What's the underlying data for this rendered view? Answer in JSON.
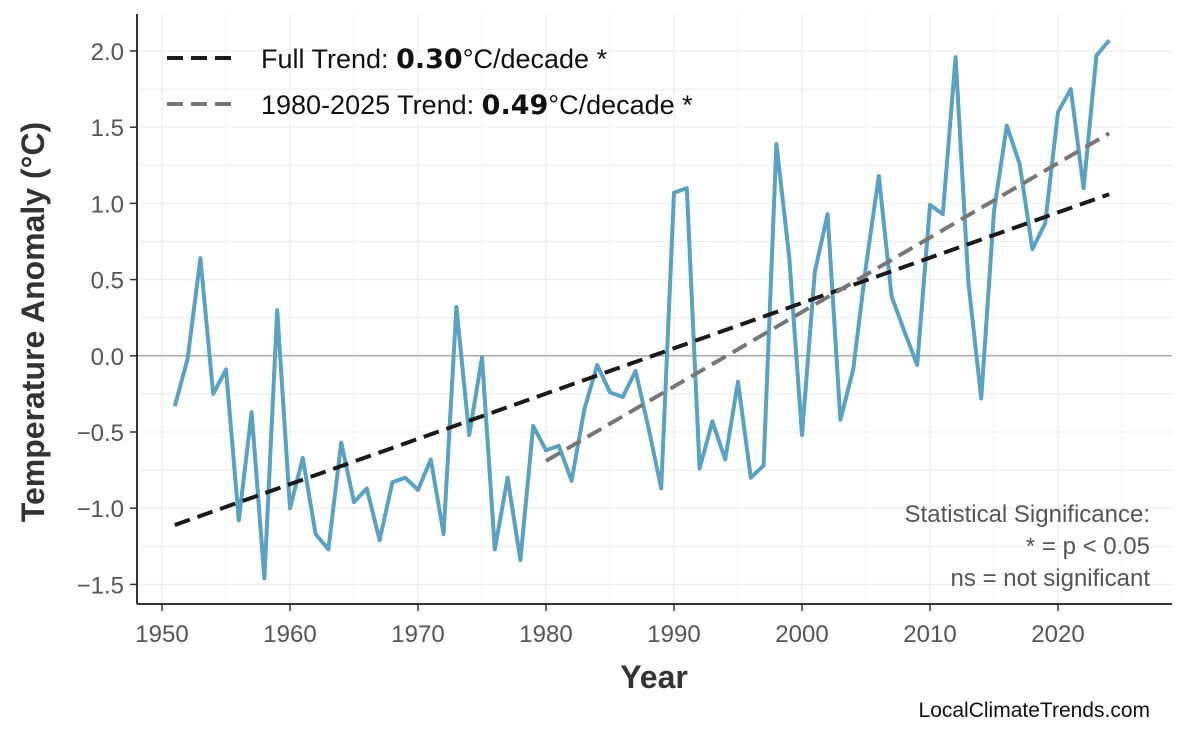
{
  "chart_data": {
    "type": "line",
    "xlabel": "Year",
    "ylabel": "Temperature Anomaly (°C)",
    "xlim": [
      1947,
      2029
    ],
    "ylim": [
      -1.65,
      2.2
    ],
    "x_ticks": [
      1950,
      1960,
      1970,
      1980,
      1990,
      2000,
      2010,
      2020
    ],
    "y_ticks": [
      2.0,
      1.5,
      1.0,
      0.5,
      0.0,
      -0.5,
      -1.0,
      -1.5
    ],
    "y_tick_labels": [
      "2.0",
      "1.5",
      "1.0",
      "0.5",
      "0.0",
      "−0.5",
      "−1.0",
      "−1.5"
    ],
    "grid": true,
    "zero_line": true,
    "legend_position": "top-left",
    "series": [
      {
        "color": "#5ba1c1",
        "x": [
          1951,
          1952,
          1953,
          1954,
          1955,
          1956,
          1957,
          1958,
          1959,
          1960,
          1961,
          1962,
          1963,
          1964,
          1965,
          1966,
          1967,
          1968,
          1969,
          1970,
          1971,
          1972,
          1973,
          1974,
          1975,
          1976,
          1977,
          1978,
          1979,
          1980,
          1981,
          1982,
          1983,
          1984,
          1985,
          1986,
          1987,
          1988,
          1989,
          1990,
          1991,
          1992,
          1993,
          1994,
          1995,
          1996,
          1997,
          1998,
          1999,
          2000,
          2001,
          2002,
          2003,
          2004,
          2005,
          2006,
          2007,
          2008,
          2009,
          2010,
          2011,
          2012,
          2013,
          2014,
          2015,
          2016,
          2017,
          2018,
          2019,
          2020,
          2021,
          2022,
          2023,
          2024
        ],
        "y": [
          -0.33,
          -0.02,
          0.64,
          -0.25,
          -0.09,
          -1.08,
          -0.37,
          -1.46,
          0.3,
          -1.0,
          -0.67,
          -1.17,
          -1.27,
          -0.57,
          -0.96,
          -0.87,
          -1.21,
          -0.83,
          -0.8,
          -0.88,
          -0.68,
          -1.17,
          0.32,
          -0.52,
          -0.01,
          -1.27,
          -0.8,
          -1.34,
          -0.46,
          -0.62,
          -0.59,
          -0.82,
          -0.35,
          -0.06,
          -0.24,
          -0.27,
          -0.1,
          -0.47,
          -0.87,
          1.07,
          1.1,
          -0.74,
          -0.43,
          -0.68,
          -0.17,
          -0.8,
          -0.72,
          1.39,
          0.65,
          -0.52,
          0.55,
          0.93,
          -0.42,
          -0.09,
          0.59,
          1.18,
          0.39,
          0.16,
          -0.06,
          0.99,
          0.93,
          1.96,
          0.48,
          -0.28,
          0.95,
          1.51,
          1.26,
          0.7,
          0.87,
          1.6,
          1.75,
          1.1,
          1.97,
          2.07
        ]
      }
    ],
    "trends": [
      {
        "label_prefix": "Full Trend: ",
        "value": "0.30",
        "label_suffix": "°C/decade *",
        "color": "#1a1a1a",
        "x": [
          1951,
          2024
        ],
        "y": [
          -1.11,
          1.06
        ]
      },
      {
        "label_prefix": "1980-2025 Trend: ",
        "value": "0.49",
        "label_suffix": "°C/decade *",
        "color": "#777777",
        "x": [
          1980,
          2024
        ],
        "y": [
          -0.69,
          1.46
        ]
      }
    ],
    "annotation": [
      "Statistical Significance:",
      "* = p < 0.05",
      "ns = not significant"
    ]
  },
  "watermark": "LocalClimateTrends.com"
}
